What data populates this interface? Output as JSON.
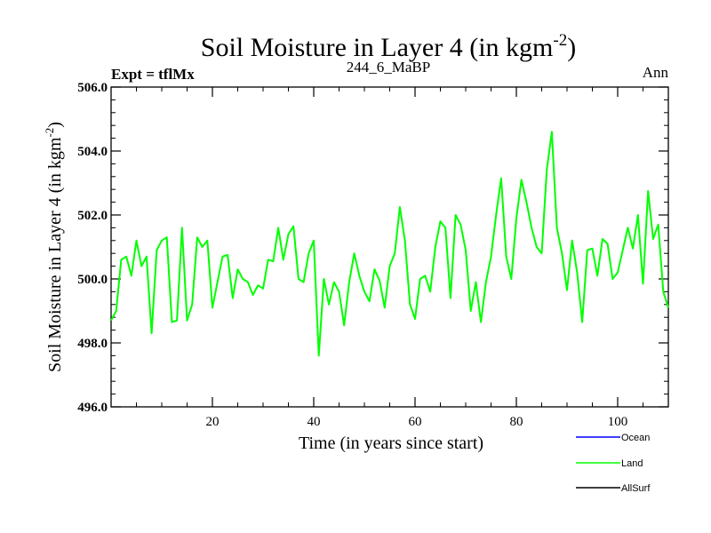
{
  "header": {
    "title_main": "Soil Moisture in Layer 4 (in kgm",
    "title_sup": "-2",
    "title_close": ")",
    "left": "Expt = tflMx",
    "center": "244_6_MaBP",
    "right": "Ann"
  },
  "axes": {
    "ylabel_main": "Soil Moisture in Layer 4 (in kgm",
    "ylabel_sup": "-2",
    "ylabel_close": ")",
    "xlabel": "Time (in years since start)"
  },
  "legend": {
    "items": [
      {
        "label": "Ocean",
        "color": "#0000ff"
      },
      {
        "label": "Land",
        "color": "#00ff00"
      },
      {
        "label": "AllSurf",
        "color": "#000000"
      }
    ]
  },
  "chart_data": {
    "type": "line",
    "title": "Soil Moisture in Layer 4 (in kgm-2)",
    "xlabel": "Time (in years since start)",
    "ylabel": "Soil Moisture in Layer 4 (in kgm-2)",
    "xlim": [
      0,
      110
    ],
    "ylim": [
      496.0,
      506.0
    ],
    "xticks": [
      20,
      40,
      60,
      80,
      100
    ],
    "yticks": [
      496.0,
      498.0,
      500.0,
      502.0,
      504.0,
      506.0
    ],
    "ytick_labels": [
      "496.0",
      "498.0",
      "500.0",
      "502.0",
      "504.0",
      "506.0"
    ],
    "xtick_labels": [
      "20",
      "40",
      "60",
      "80",
      "100"
    ],
    "series": [
      {
        "name": "Land",
        "color": "#00ff00",
        "x": [
          0,
          1,
          2,
          3,
          4,
          5,
          6,
          7,
          8,
          9,
          10,
          11,
          12,
          13,
          14,
          15,
          16,
          17,
          18,
          19,
          20,
          21,
          22,
          23,
          24,
          25,
          26,
          27,
          28,
          29,
          30,
          31,
          32,
          33,
          34,
          35,
          36,
          37,
          38,
          39,
          40,
          41,
          42,
          43,
          44,
          45,
          46,
          47,
          48,
          49,
          50,
          51,
          52,
          53,
          54,
          55,
          56,
          57,
          58,
          59,
          60,
          61,
          62,
          63,
          64,
          65,
          66,
          67,
          68,
          69,
          70,
          71,
          72,
          73,
          74,
          75,
          76,
          77,
          78,
          79,
          80,
          81,
          82,
          83,
          84,
          85,
          86,
          87,
          88,
          89,
          90,
          91,
          92,
          93,
          94,
          95,
          96,
          97,
          98,
          99,
          100,
          101,
          102,
          103,
          104,
          105,
          106,
          107,
          108,
          109,
          110
        ],
        "values": [
          498.7,
          499.0,
          500.6,
          500.7,
          500.1,
          501.2,
          500.4,
          500.7,
          498.3,
          500.9,
          501.2,
          501.3,
          498.65,
          498.7,
          501.6,
          498.7,
          499.2,
          501.3,
          501.0,
          501.2,
          499.1,
          499.9,
          500.7,
          500.75,
          499.4,
          500.3,
          500.0,
          499.9,
          499.5,
          499.8,
          499.7,
          500.6,
          500.55,
          501.6,
          500.6,
          501.4,
          501.65,
          500.0,
          499.9,
          500.8,
          501.2,
          497.6,
          500.0,
          499.2,
          499.9,
          499.6,
          498.55,
          499.9,
          500.8,
          500.1,
          499.6,
          499.3,
          500.3,
          499.95,
          499.1,
          500.4,
          500.8,
          502.25,
          501.2,
          499.2,
          498.75,
          500.0,
          500.1,
          499.6,
          501.0,
          501.8,
          501.6,
          499.4,
          502.0,
          501.7,
          500.9,
          499.0,
          499.9,
          498.65,
          499.9,
          500.7,
          502.0,
          503.15,
          500.7,
          500.0,
          501.9,
          503.1,
          502.4,
          501.6,
          501.0,
          500.8,
          503.4,
          504.6,
          501.6,
          500.8,
          499.65,
          501.2,
          500.2,
          498.65,
          500.9,
          500.95,
          500.1,
          501.25,
          501.1,
          500.0,
          500.2,
          500.9,
          501.6,
          500.95,
          502.0,
          499.85,
          502.75,
          501.25,
          501.7,
          499.6,
          499.1
        ]
      },
      {
        "name": "Ocean",
        "color": "#0000ff",
        "x": [],
        "values": []
      },
      {
        "name": "AllSurf",
        "color": "#000000",
        "x": [],
        "values": []
      }
    ]
  }
}
